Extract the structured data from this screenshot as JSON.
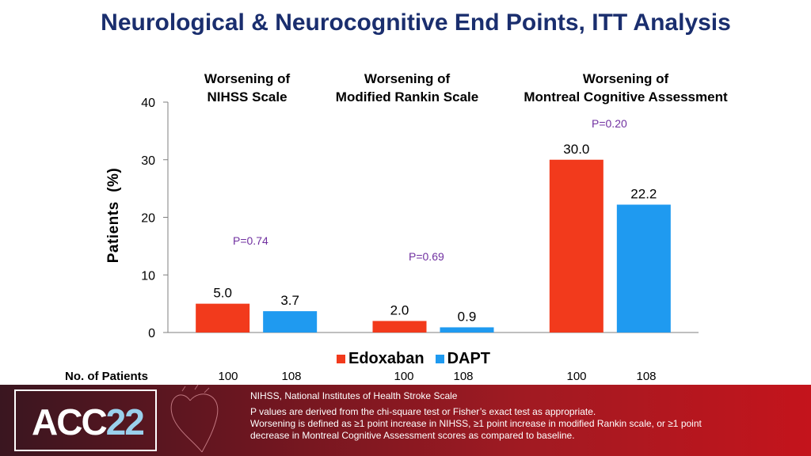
{
  "title": "Neurological & Neurocognitive End Points, ITT Analysis",
  "chart_data": {
    "type": "bar",
    "title": "Neurological & Neurocognitive End Points, ITT Analysis",
    "ylabel": "Patients  (%)",
    "xlabel": "",
    "ylim": [
      0,
      40
    ],
    "yticks": [
      "0",
      "10",
      "20",
      "30",
      "40"
    ],
    "categories": [
      [
        "Worsening of",
        "NIHSS Scale"
      ],
      [
        "Worsening of",
        "Modified Rankin Scale"
      ],
      [
        "Worsening of",
        "Montreal Cognitive Assessment"
      ]
    ],
    "series": [
      {
        "name": "Edoxaban",
        "color": "#f23a1c",
        "values": [
          5.0,
          2.0,
          30.0
        ],
        "labels": [
          "5.0",
          "2.0",
          "30.0"
        ]
      },
      {
        "name": "DAPT",
        "color": "#1f9af0",
        "values": [
          3.7,
          0.9,
          22.2
        ],
        "labels": [
          "3.7",
          "0.9",
          "22.2"
        ]
      }
    ],
    "p_values": [
      "P=0.74",
      "P=0.69",
      "P=0.20"
    ],
    "legend_position": "bottom-center"
  },
  "patients_row": {
    "label": "No. of Patients",
    "values": [
      "100",
      "108",
      "100",
      "108",
      "100",
      "108"
    ]
  },
  "footer": {
    "logo_prefix": "ACC",
    "logo_year": "22",
    "footnote1": "NIHSS, National Institutes of Health Stroke Scale",
    "footnote2": "P values are derived from the chi-square test or Fisher’s exact test as appropriate.",
    "footnote3": "Worsening is defined as ≥1 point increase in NIHSS, ≥1 point increase in modified Rankin scale, or ≥1 point",
    "footnote4": "decrease in Montreal Cognitive Assessment scores as compared to baseline."
  }
}
